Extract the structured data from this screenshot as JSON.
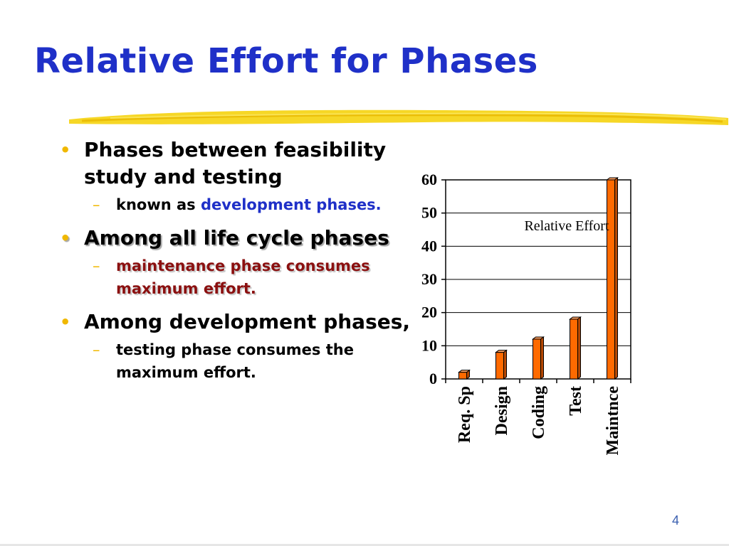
{
  "slide": {
    "title": "Relative Effort for Phases",
    "page_number": "4",
    "accent_colors": {
      "title": "#1f30c8",
      "bullet": "#f0b800",
      "highlight_blue": "#1f30c8",
      "highlight_red": "#8b1010",
      "bar": "#ff6a00",
      "brush": "#f5d000"
    },
    "bullets": [
      {
        "text": "Phases between feasibility study and testing",
        "sub": {
          "prefix": "known as ",
          "highlight": "development phases."
        }
      },
      {
        "text": "Among all life cycle phases",
        "sub": {
          "text": "maintenance phase consumes  maximum effort."
        }
      },
      {
        "text": "Among development phases,",
        "sub": {
          "text": "testing phase consumes the maximum effort."
        }
      }
    ]
  },
  "chart_data": {
    "type": "bar",
    "categories": [
      "Req. Sp",
      "Design",
      "Coding",
      "Test",
      "Maintnce"
    ],
    "series": [
      {
        "name": "Relative Effort",
        "values": [
          2,
          8,
          12,
          18,
          60
        ]
      }
    ],
    "yticks": [
      "0",
      "10",
      "20",
      "30",
      "40",
      "50",
      "60"
    ],
    "ylim": [
      0,
      60
    ],
    "grid": true,
    "legend": "top-right",
    "title": "",
    "xlabel": "",
    "ylabel": ""
  }
}
